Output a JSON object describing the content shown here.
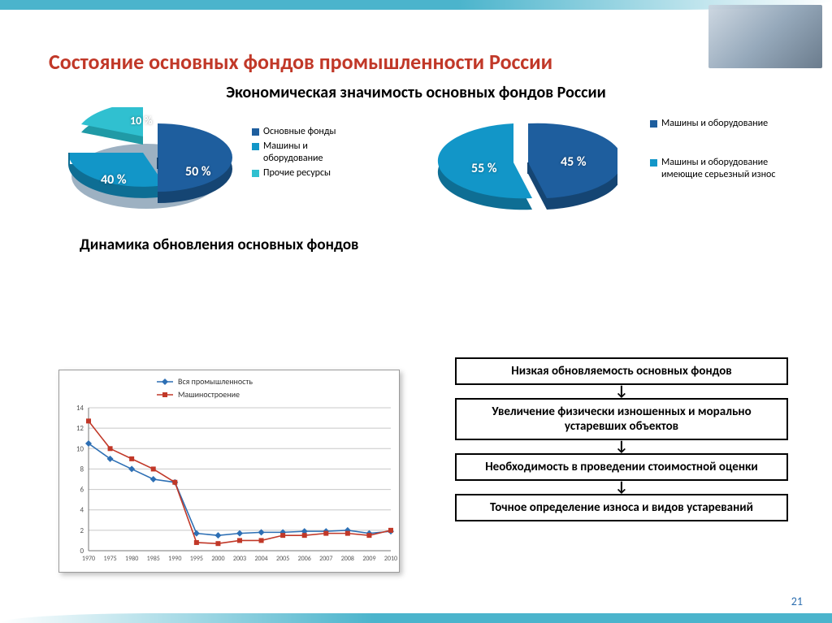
{
  "title": "Состояние основных фондов промышленности России",
  "subtitle": "Экономическая значимость основных фондов России",
  "section2": "Динамика обновления основных фондов",
  "page_number": "21",
  "palette": {
    "dark_blue": "#1e5e9e",
    "mid_blue": "#1296c8",
    "cyan": "#30c0d0",
    "accent_red": "#c13828"
  },
  "pie1": {
    "type": "pie",
    "slices": [
      {
        "label": "50 %",
        "value": 50,
        "color": "#1e5e9e",
        "legend": "Основные фонды"
      },
      {
        "label": "40 %",
        "value": 40,
        "color": "#1296c8",
        "legend": "Машины и оборудование"
      },
      {
        "label": "10 %",
        "value": 10,
        "color": "#30c0d0",
        "legend": "Прочие ресурсы"
      }
    ]
  },
  "pie2": {
    "type": "pie",
    "slices": [
      {
        "label": "45 %",
        "value": 45,
        "color": "#1e5e9e",
        "legend": "Машины и оборудование"
      },
      {
        "label": "55 %",
        "value": 55,
        "color": "#1296c8",
        "legend": "Машины и оборудование имеющие серьезный износ"
      }
    ]
  },
  "line_chart": {
    "type": "line",
    "x_categories": [
      "1970",
      "1975",
      "1980",
      "1985",
      "1990",
      "1995",
      "2000",
      "2003",
      "2004",
      "2005",
      "2006",
      "2007",
      "2008",
      "2009",
      "2010"
    ],
    "ylim": [
      0,
      14
    ],
    "ytick_step": 2,
    "series": [
      {
        "name": "Вся промышленность",
        "color": "#2d6fb4",
        "marker": "diamond",
        "values": [
          10.5,
          9.0,
          8.0,
          7.0,
          6.7,
          1.7,
          1.5,
          1.7,
          1.8,
          1.8,
          1.9,
          1.9,
          2.0,
          1.7,
          1.9
        ]
      },
      {
        "name": "Машиностроение",
        "color": "#c13828",
        "marker": "square",
        "values": [
          12.7,
          10.0,
          9.0,
          8.0,
          6.7,
          0.8,
          0.7,
          1.0,
          1.0,
          1.5,
          1.5,
          1.7,
          1.7,
          1.5,
          2.0
        ]
      }
    ],
    "grid_color": "#c8c8c8",
    "background": "#ffffff",
    "axis_color": "#777",
    "label_fontsize": 9
  },
  "flow": {
    "type": "flowchart",
    "boxes": [
      "Низкая обновляемость основных фондов",
      "Увеличение физически изношенных и морально устаревших объектов",
      "Необходимость в проведении стоимостной оценки",
      "Точное определение износа и видов устареваний"
    ]
  }
}
